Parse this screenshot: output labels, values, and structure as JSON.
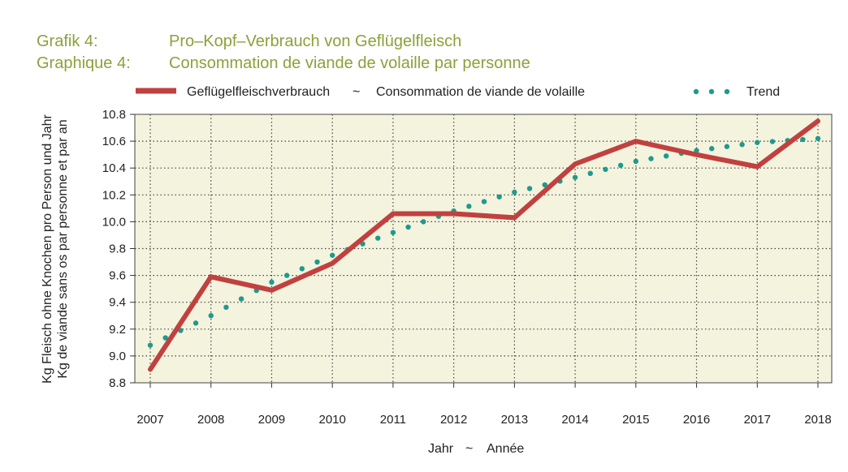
{
  "header": {
    "line1_label": "Grafik 4:",
    "line1_text": "Pro–Kopf–Verbrauch von Geflügelfleisch",
    "line2_label": "Graphique 4:",
    "line2_text": "Consommation de viande de volaille par personne"
  },
  "colors": {
    "title": "#8ba13a",
    "plot_bg": "#f4f3de",
    "series": "#c0413f",
    "trend": "#1e9a8e"
  },
  "chart_data": {
    "type": "line",
    "x": [
      2007,
      2008,
      2009,
      2010,
      2011,
      2012,
      2013,
      2014,
      2015,
      2016,
      2017,
      2018
    ],
    "x_tick_labels": [
      "2007",
      "2008",
      "2009",
      "2010",
      "2011",
      "2012",
      "2013",
      "2014",
      "2015",
      "2016",
      "2017",
      "2018"
    ],
    "y_tick_labels": [
      "8.8",
      "9.0",
      "9.2",
      "9.4",
      "9.6",
      "9.8",
      "10.0",
      "10.2",
      "10.4",
      "10.6",
      "10.8"
    ],
    "series": [
      {
        "name": "Geflügelfleischverbrauch ~ Consommation de viande de volaille",
        "style": "solid",
        "values": [
          8.9,
          9.59,
          9.49,
          9.69,
          10.06,
          10.06,
          10.03,
          10.43,
          10.6,
          10.5,
          10.41,
          10.75
        ]
      },
      {
        "name": "Trend",
        "style": "dotted",
        "values": [
          9.08,
          9.3,
          9.55,
          9.75,
          9.92,
          10.08,
          10.22,
          10.33,
          10.45,
          10.53,
          10.59,
          10.62
        ]
      }
    ],
    "ylim": [
      8.8,
      10.8
    ],
    "xlim": [
      2007,
      2018
    ],
    "grid": true,
    "legend_position": "top",
    "legend": {
      "series_label_de": "Geflügelfleischverbrauch",
      "separator": "~",
      "series_label_fr": "Consommation de viande de volaille",
      "trend_label": "Trend"
    },
    "xlabel": {
      "de": "Jahr",
      "separator": "~",
      "fr": "Année"
    },
    "ylabel": {
      "de": "Kg Fleisch ohne Knochen pro Person und Jahr",
      "fr": "Kg de viande sans os par personne et par an"
    }
  }
}
